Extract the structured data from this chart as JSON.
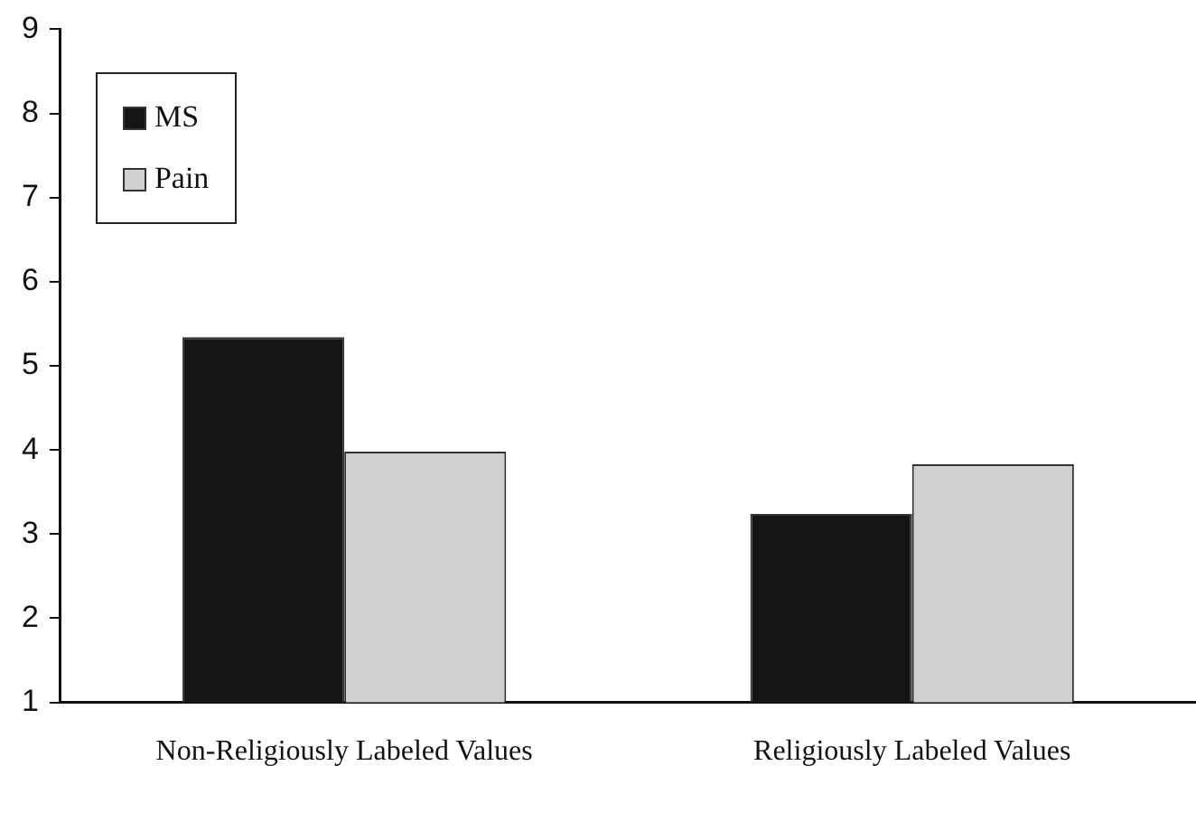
{
  "chart_data": {
    "type": "bar",
    "categories": [
      "Non-Religiously Labeled Values",
      "Religiously Labeled Values"
    ],
    "series": [
      {
        "name": "MS",
        "color": "#141615",
        "values": [
          5.34,
          3.24
        ]
      },
      {
        "name": "Pain",
        "color": "#d0d0d0",
        "values": [
          3.98,
          3.83
        ]
      }
    ],
    "ylim": [
      1,
      9
    ],
    "yticks": [
      1,
      2,
      3,
      4,
      5,
      6,
      7,
      8,
      9
    ],
    "grid": false,
    "legend": "top left"
  }
}
